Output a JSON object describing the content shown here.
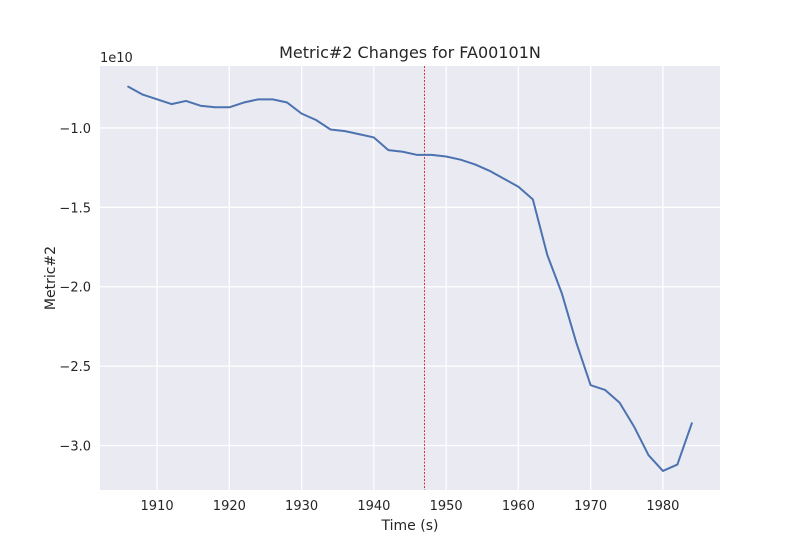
{
  "chart_data": {
    "type": "line",
    "title": "Metric#2 Changes for FA00101N",
    "xlabel": "Time (s)",
    "ylabel": "Metric#2",
    "y_offset_label": "1e10",
    "xlim": [
      1902.1,
      1987.9
    ],
    "ylim": [
      -3.28,
      -0.61
    ],
    "x_ticks": [
      1910,
      1920,
      1930,
      1940,
      1950,
      1960,
      1970,
      1980
    ],
    "x_tick_labels": [
      "1910",
      "1920",
      "1930",
      "1940",
      "1950",
      "1960",
      "1970",
      "1980"
    ],
    "y_ticks": [
      -1.0,
      -1.5,
      -2.0,
      -2.5,
      -3.0
    ],
    "y_tick_labels": [
      "−1.0",
      "−1.5",
      "−2.0",
      "−2.5",
      "−3.0"
    ],
    "grid": true,
    "background": "#eaeaf2",
    "line_color": "#4c72b0",
    "vline": {
      "x": 1947,
      "color": "#e8000b",
      "style": "dashed"
    },
    "series": [
      {
        "x": [
          1906,
          1908,
          1910,
          1912,
          1914,
          1916,
          1918,
          1920,
          1922,
          1924,
          1926,
          1928,
          1930,
          1932,
          1934,
          1936,
          1938,
          1940,
          1942,
          1944,
          1946,
          1948,
          1950,
          1952,
          1954,
          1956,
          1958,
          1960,
          1962,
          1964,
          1966,
          1968,
          1970,
          1972,
          1974,
          1976,
          1978,
          1980,
          1982,
          1984
        ],
        "values": [
          -0.74,
          -0.79,
          -0.82,
          -0.85,
          -0.83,
          -0.86,
          -0.87,
          -0.87,
          -0.84,
          -0.82,
          -0.82,
          -0.84,
          -0.91,
          -0.95,
          -1.01,
          -1.02,
          -1.04,
          -1.06,
          -1.14,
          -1.15,
          -1.17,
          -1.17,
          -1.18,
          -1.2,
          -1.23,
          -1.27,
          -1.32,
          -1.37,
          -1.45,
          -1.8,
          -2.04,
          -2.35,
          -2.62,
          -2.65,
          -2.73,
          -2.88,
          -3.06,
          -3.16,
          -3.12,
          -2.86
        ]
      }
    ]
  }
}
